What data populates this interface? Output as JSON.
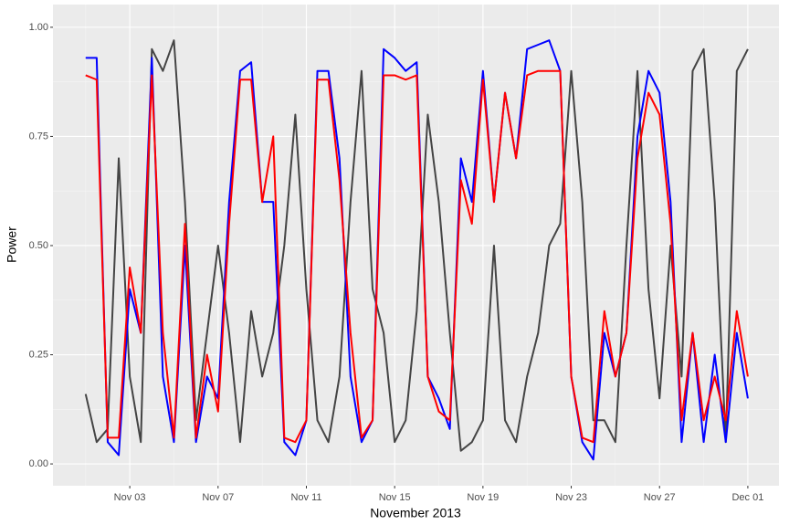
{
  "chart_data": {
    "type": "line",
    "xlabel": "November 2013",
    "ylabel": "Power",
    "x": [
      1,
      1.5,
      2,
      2.5,
      3,
      3.5,
      4,
      4.5,
      5,
      5.5,
      6,
      6.5,
      7,
      7.5,
      8,
      8.5,
      9,
      9.5,
      10,
      10.5,
      11,
      11.5,
      12,
      12.5,
      13,
      13.5,
      14,
      14.5,
      15,
      15.5,
      16,
      16.5,
      17,
      17.5,
      18,
      18.5,
      19,
      19.5,
      20,
      20.5,
      21,
      21.5,
      22,
      22.5,
      23,
      23.5,
      24,
      24.5,
      25,
      25.5,
      26,
      26.5,
      27,
      27.5,
      28,
      28.5,
      29,
      29.5,
      30,
      30.5,
      31
    ],
    "series": [
      {
        "color": "#444444",
        "values": [
          0.16,
          0.05,
          0.08,
          0.7,
          0.2,
          0.05,
          0.95,
          0.9,
          0.97,
          0.6,
          0.1,
          0.3,
          0.5,
          0.3,
          0.05,
          0.35,
          0.2,
          0.3,
          0.5,
          0.8,
          0.4,
          0.1,
          0.05,
          0.2,
          0.6,
          0.9,
          0.4,
          0.3,
          0.05,
          0.1,
          0.35,
          0.8,
          0.6,
          0.3,
          0.03,
          0.05,
          0.1,
          0.5,
          0.1,
          0.05,
          0.2,
          0.3,
          0.5,
          0.55,
          0.9,
          0.6,
          0.1,
          0.1,
          0.05,
          0.5,
          0.9,
          0.4,
          0.15,
          0.5,
          0.2,
          0.9,
          0.95,
          0.6,
          0.05,
          0.9,
          0.95
        ]
      },
      {
        "color": "#0000ff",
        "values": [
          0.93,
          0.93,
          0.05,
          0.02,
          0.4,
          0.3,
          0.93,
          0.2,
          0.05,
          0.5,
          0.05,
          0.2,
          0.15,
          0.6,
          0.9,
          0.92,
          0.6,
          0.6,
          0.05,
          0.02,
          0.1,
          0.9,
          0.9,
          0.7,
          0.2,
          0.05,
          0.1,
          0.95,
          0.93,
          0.9,
          0.92,
          0.2,
          0.15,
          0.08,
          0.7,
          0.6,
          0.9,
          0.6,
          0.85,
          0.7,
          0.95,
          0.96,
          0.97,
          0.9,
          0.2,
          0.05,
          0.01,
          0.3,
          0.2,
          0.3,
          0.75,
          0.9,
          0.85,
          0.6,
          0.05,
          0.3,
          0.05,
          0.25,
          0.05,
          0.3,
          0.15
        ]
      },
      {
        "color": "#ff0000",
        "values": [
          0.89,
          0.88,
          0.06,
          0.06,
          0.45,
          0.3,
          0.89,
          0.3,
          0.06,
          0.55,
          0.06,
          0.25,
          0.12,
          0.55,
          0.88,
          0.88,
          0.6,
          0.75,
          0.06,
          0.05,
          0.1,
          0.88,
          0.88,
          0.65,
          0.3,
          0.06,
          0.1,
          0.89,
          0.89,
          0.88,
          0.89,
          0.2,
          0.12,
          0.1,
          0.65,
          0.55,
          0.88,
          0.6,
          0.85,
          0.7,
          0.89,
          0.9,
          0.9,
          0.9,
          0.2,
          0.06,
          0.05,
          0.35,
          0.2,
          0.3,
          0.7,
          0.85,
          0.8,
          0.55,
          0.1,
          0.3,
          0.1,
          0.2,
          0.1,
          0.35,
          0.2
        ]
      }
    ],
    "xlim": [
      -0.48,
      32.41
    ],
    "xticks": [
      {
        "value": 3,
        "label": "Nov 03"
      },
      {
        "value": 7,
        "label": "Nov 07"
      },
      {
        "value": 11,
        "label": "Nov 11"
      },
      {
        "value": 15,
        "label": "Nov 15"
      },
      {
        "value": 19,
        "label": "Nov 19"
      },
      {
        "value": 23,
        "label": "Nov 23"
      },
      {
        "value": 27,
        "label": "Nov 27"
      },
      {
        "value": 31,
        "label": "Dec 01"
      }
    ],
    "ylim": [
      -0.05,
      1.052
    ],
    "yticks": [
      {
        "value": 0,
        "label": "0.00"
      },
      {
        "value": 0.25,
        "label": "0.25"
      },
      {
        "value": 0.5,
        "label": "0.50"
      },
      {
        "value": 0.75,
        "label": "0.75"
      },
      {
        "value": 1,
        "label": "1.00"
      }
    ],
    "grid": true
  }
}
